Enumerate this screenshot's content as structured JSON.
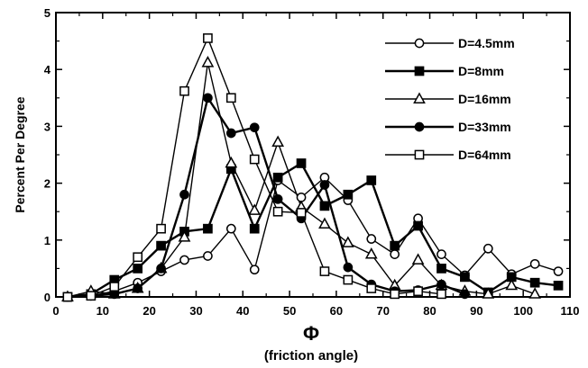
{
  "chart_data": {
    "type": "line",
    "xlabel": "Φ",
    "xlabel_sub": "(friction angle)",
    "ylabel": "Percent Per Degree",
    "xlim": [
      0,
      110
    ],
    "ylim": [
      0,
      5
    ],
    "xticks": [
      0,
      10,
      20,
      30,
      40,
      50,
      60,
      70,
      80,
      90,
      100,
      110
    ],
    "yticks": [
      0,
      1,
      2,
      3,
      4,
      5
    ],
    "grid": false,
    "legend_position": "top-right",
    "series": [
      {
        "name": "D=4.5mm",
        "marker": "circle",
        "fill": "open",
        "line_weight": "thin",
        "x": [
          2.5,
          7.5,
          12.5,
          17.5,
          22.5,
          27.5,
          32.5,
          37.5,
          42.5,
          47.5,
          52.5,
          57.5,
          62.5,
          67.5,
          72.5,
          77.5,
          82.5,
          87.5,
          92.5,
          97.5,
          102.5,
          107.5
        ],
        "y": [
          0,
          0.02,
          0.1,
          0.25,
          0.45,
          0.65,
          0.72,
          1.2,
          0.48,
          2.05,
          1.75,
          2.1,
          1.7,
          1.02,
          0.75,
          1.38,
          0.75,
          0.38,
          0.85,
          0.4,
          0.58,
          0.45
        ]
      },
      {
        "name": "D=8mm",
        "marker": "square",
        "fill": "filled",
        "line_weight": "thick",
        "x": [
          2.5,
          7.5,
          12.5,
          17.5,
          22.5,
          27.5,
          32.5,
          37.5,
          42.5,
          47.5,
          52.5,
          57.5,
          62.5,
          67.5,
          72.5,
          77.5,
          82.5,
          87.5,
          92.5,
          97.5,
          102.5,
          107.5
        ],
        "y": [
          0,
          0.05,
          0.3,
          0.5,
          0.9,
          1.15,
          1.2,
          2.25,
          1.2,
          2.1,
          2.35,
          1.6,
          1.8,
          2.05,
          0.9,
          1.25,
          0.5,
          0.35,
          0.08,
          0.35,
          0.25,
          0.2
        ]
      },
      {
        "name": "D=16mm",
        "marker": "triangle",
        "fill": "open",
        "line_weight": "thin",
        "x": [
          2.5,
          7.5,
          12.5,
          17.5,
          22.5,
          27.5,
          32.5,
          37.5,
          42.5,
          47.5,
          52.5,
          57.5,
          62.5,
          67.5,
          72.5,
          77.5,
          82.5,
          87.5,
          92.5,
          97.5,
          102.5
        ],
        "y": [
          0,
          0.1,
          0.05,
          0.15,
          0.5,
          1.05,
          4.12,
          2.35,
          1.52,
          2.72,
          1.58,
          1.28,
          0.95,
          0.75,
          0.2,
          0.65,
          0.2,
          0.1,
          0.05,
          0.2,
          0.05
        ]
      },
      {
        "name": "D=33mm",
        "marker": "circle",
        "fill": "filled",
        "line_weight": "thick",
        "x": [
          2.5,
          7.5,
          12.5,
          17.5,
          22.5,
          27.5,
          32.5,
          37.5,
          42.5,
          47.5,
          52.5,
          57.5,
          62.5,
          67.5,
          72.5,
          77.5,
          82.5,
          87.5
        ],
        "y": [
          0,
          0.02,
          0.05,
          0.15,
          0.5,
          1.8,
          3.5,
          2.88,
          2.98,
          1.72,
          1.38,
          1.97,
          0.52,
          0.22,
          0.1,
          0.12,
          0.22,
          0.05
        ]
      },
      {
        "name": "D=64mm",
        "marker": "square",
        "fill": "open",
        "line_weight": "thin",
        "x": [
          2.5,
          7.5,
          12.5,
          17.5,
          22.5,
          27.5,
          32.5,
          37.5,
          42.5,
          47.5,
          52.5,
          57.5,
          62.5,
          67.5,
          72.5,
          77.5,
          82.5
        ],
        "y": [
          0,
          0.02,
          0.18,
          0.7,
          1.2,
          3.62,
          4.55,
          3.5,
          2.42,
          1.5,
          1.48,
          0.45,
          0.3,
          0.15,
          0.05,
          0.1,
          0.05
        ]
      }
    ]
  }
}
